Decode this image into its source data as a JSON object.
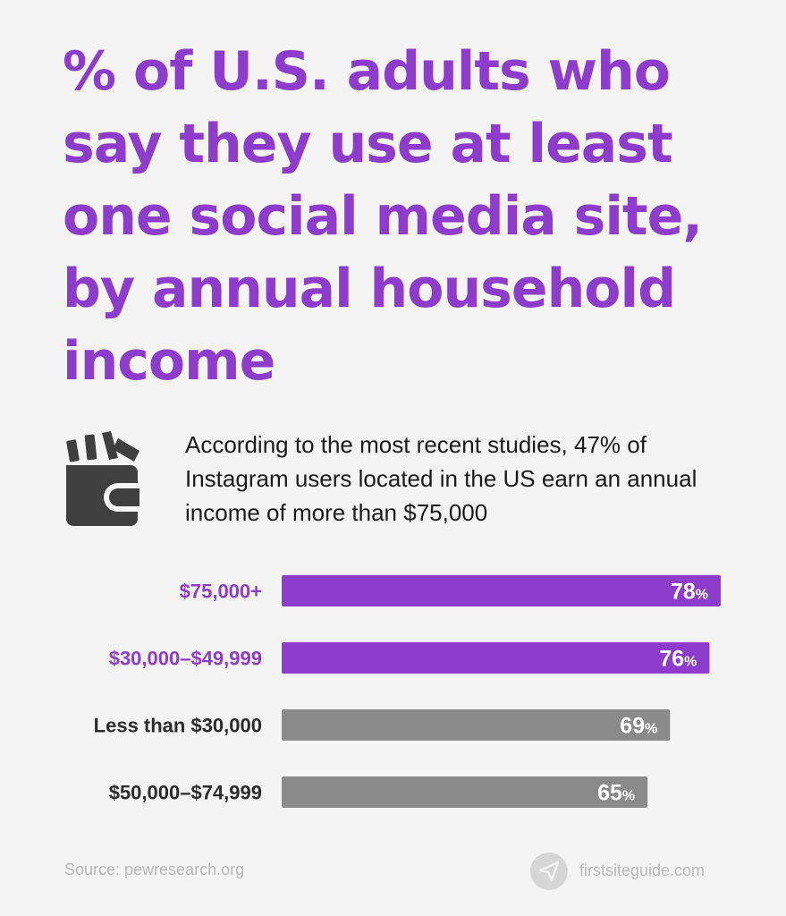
{
  "title": "% of U.S. adults who say they use at least one social media site, by annual household income",
  "intro": {
    "icon": "wallet-icon",
    "text": "According to the most recent studies, 47% of Instagram users located in the US earn an annual income of more than $75,000"
  },
  "chart_data": {
    "type": "bar",
    "orientation": "horizontal",
    "categories": [
      "$75,000+",
      "$30,000–$49,999",
      "Less than $30,000",
      "$50,000–$74,999"
    ],
    "values": [
      78,
      76,
      69,
      65
    ],
    "value_suffix": "%",
    "xlim": [
      0,
      78
    ],
    "highlighted": [
      true,
      true,
      false,
      false
    ],
    "colors": {
      "highlight": "#8e3ccb",
      "normal": "#8a8a8a",
      "highlight_label": "#8e3ccb",
      "normal_label": "#2b2b2b"
    }
  },
  "footer": {
    "source": "Source: pewresearch.org",
    "brand": "firstsiteguide.com",
    "brand_icon": "paper-plane-icon"
  }
}
